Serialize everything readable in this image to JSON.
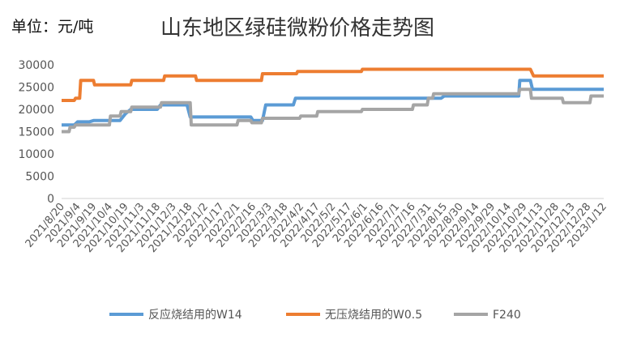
{
  "unit_label": "单位：元/吨",
  "chart_data": {
    "type": "line",
    "title": "山东地区绿硅微粉价格走势图",
    "xlabel": "",
    "ylabel": "",
    "ylim": [
      0,
      30000
    ],
    "yticks": [
      0,
      5000,
      10000,
      15000,
      20000,
      25000,
      30000
    ],
    "grid": false,
    "legend_position": "bottom",
    "x_range": [
      "2021/8/20",
      "2023/1/12"
    ],
    "x_tick_labels": [
      "2021/8/20",
      "2021/9/4",
      "2021/9/19",
      "2021/10/4",
      "2021/10/19",
      "2021/11/3",
      "2021/11/18",
      "2021/12/3",
      "2021/12/18",
      "2022/1/2",
      "2022/1/17",
      "2022/2/1",
      "2022/2/16",
      "2022/3/3",
      "2022/3/18",
      "2022/4/2",
      "2022/4/17",
      "2022/5/2",
      "2022/5/17",
      "2022/6/1",
      "2022/6/16",
      "2022/7/1",
      "2022/7/16",
      "2022/7/31",
      "2022/8/15",
      "2022/8/30",
      "2022/9/14",
      "2022/9/29",
      "2022/10/14",
      "2022/10/29",
      "2022/11/13",
      "2022/11/28",
      "2022/12/13",
      "2022/12/28",
      "2023/1/12"
    ],
    "series": [
      {
        "name": "反应烧结用的W14",
        "color": "#5B9BD5",
        "points": [
          [
            "2021/8/20",
            16500
          ],
          [
            "2021/9/1",
            16500
          ],
          [
            "2021/9/4",
            17200
          ],
          [
            "2021/9/15",
            17200
          ],
          [
            "2021/9/19",
            17500
          ],
          [
            "2021/10/14",
            17500
          ],
          [
            "2021/10/19",
            19000
          ],
          [
            "2021/10/24",
            20000
          ],
          [
            "2021/11/18",
            20000
          ],
          [
            "2021/11/21",
            21000
          ],
          [
            "2021/12/16",
            21000
          ],
          [
            "2021/12/19",
            18300
          ],
          [
            "2022/2/14",
            18300
          ],
          [
            "2022/2/16",
            17500
          ],
          [
            "2022/2/25",
            17500
          ],
          [
            "2022/2/28",
            21000
          ],
          [
            "2022/3/26",
            21000
          ],
          [
            "2022/3/28",
            22500
          ],
          [
            "2022/8/12",
            22500
          ],
          [
            "2022/8/15",
            23000
          ],
          [
            "2022/10/24",
            23000
          ],
          [
            "2022/10/25",
            26500
          ],
          [
            "2022/11/4",
            26500
          ],
          [
            "2022/11/6",
            24500
          ],
          [
            "2023/1/12",
            24500
          ]
        ]
      },
      {
        "name": "无压烧结用的W0.5",
        "color": "#ED7D31",
        "points": [
          [
            "2021/8/20",
            22000
          ],
          [
            "2021/9/1",
            22000
          ],
          [
            "2021/9/2",
            22500
          ],
          [
            "2021/9/6",
            22500
          ],
          [
            "2021/9/7",
            26500
          ],
          [
            "2021/9/19",
            26500
          ],
          [
            "2021/9/20",
            25500
          ],
          [
            "2021/10/24",
            25500
          ],
          [
            "2021/10/25",
            26500
          ],
          [
            "2021/11/24",
            26500
          ],
          [
            "2021/11/25",
            27500
          ],
          [
            "2021/12/24",
            27500
          ],
          [
            "2021/12/25",
            26500
          ],
          [
            "2022/2/24",
            26500
          ],
          [
            "2022/2/25",
            28000
          ],
          [
            "2022/3/29",
            28000
          ],
          [
            "2022/3/30",
            28500
          ],
          [
            "2022/5/29",
            28500
          ],
          [
            "2022/5/30",
            29000
          ],
          [
            "2022/11/4",
            29000
          ],
          [
            "2022/11/7",
            27500
          ],
          [
            "2023/1/12",
            27500
          ]
        ]
      },
      {
        "name": "F240",
        "color": "#A5A5A5",
        "points": [
          [
            "2021/8/20",
            15000
          ],
          [
            "2021/8/27",
            15000
          ],
          [
            "2021/8/28",
            16000
          ],
          [
            "2021/9/1",
            16000
          ],
          [
            "2021/9/2",
            16500
          ],
          [
            "2021/10/4",
            16500
          ],
          [
            "2021/10/5",
            18500
          ],
          [
            "2021/10/14",
            18500
          ],
          [
            "2021/10/15",
            19500
          ],
          [
            "2021/10/24",
            19500
          ],
          [
            "2021/10/25",
            20500
          ],
          [
            "2021/11/21",
            20500
          ],
          [
            "2021/11/22",
            21500
          ],
          [
            "2021/12/19",
            21500
          ],
          [
            "2021/12/20",
            16500
          ],
          [
            "2022/2/1",
            16500
          ],
          [
            "2022/2/2",
            17500
          ],
          [
            "2022/2/14",
            17500
          ],
          [
            "2022/2/15",
            17000
          ],
          [
            "2022/2/24",
            17000
          ],
          [
            "2022/2/25",
            18000
          ],
          [
            "2022/4/1",
            18000
          ],
          [
            "2022/4/2",
            18500
          ],
          [
            "2022/4/17",
            18500
          ],
          [
            "2022/4/18",
            19500
          ],
          [
            "2022/5/29",
            19500
          ],
          [
            "2022/5/30",
            20000
          ],
          [
            "2022/7/16",
            20000
          ],
          [
            "2022/7/17",
            21000
          ],
          [
            "2022/7/30",
            21000
          ],
          [
            "2022/7/31",
            22500
          ],
          [
            "2022/8/4",
            22500
          ],
          [
            "2022/8/5",
            23500
          ],
          [
            "2022/10/24",
            23500
          ],
          [
            "2022/10/25",
            24500
          ],
          [
            "2022/11/4",
            24500
          ],
          [
            "2022/11/5",
            22500
          ],
          [
            "2022/12/4",
            22500
          ],
          [
            "2022/12/5",
            21500
          ],
          [
            "2022/12/30",
            21500
          ],
          [
            "2022/12/31",
            23000
          ],
          [
            "2023/1/12",
            23000
          ]
        ]
      }
    ]
  }
}
